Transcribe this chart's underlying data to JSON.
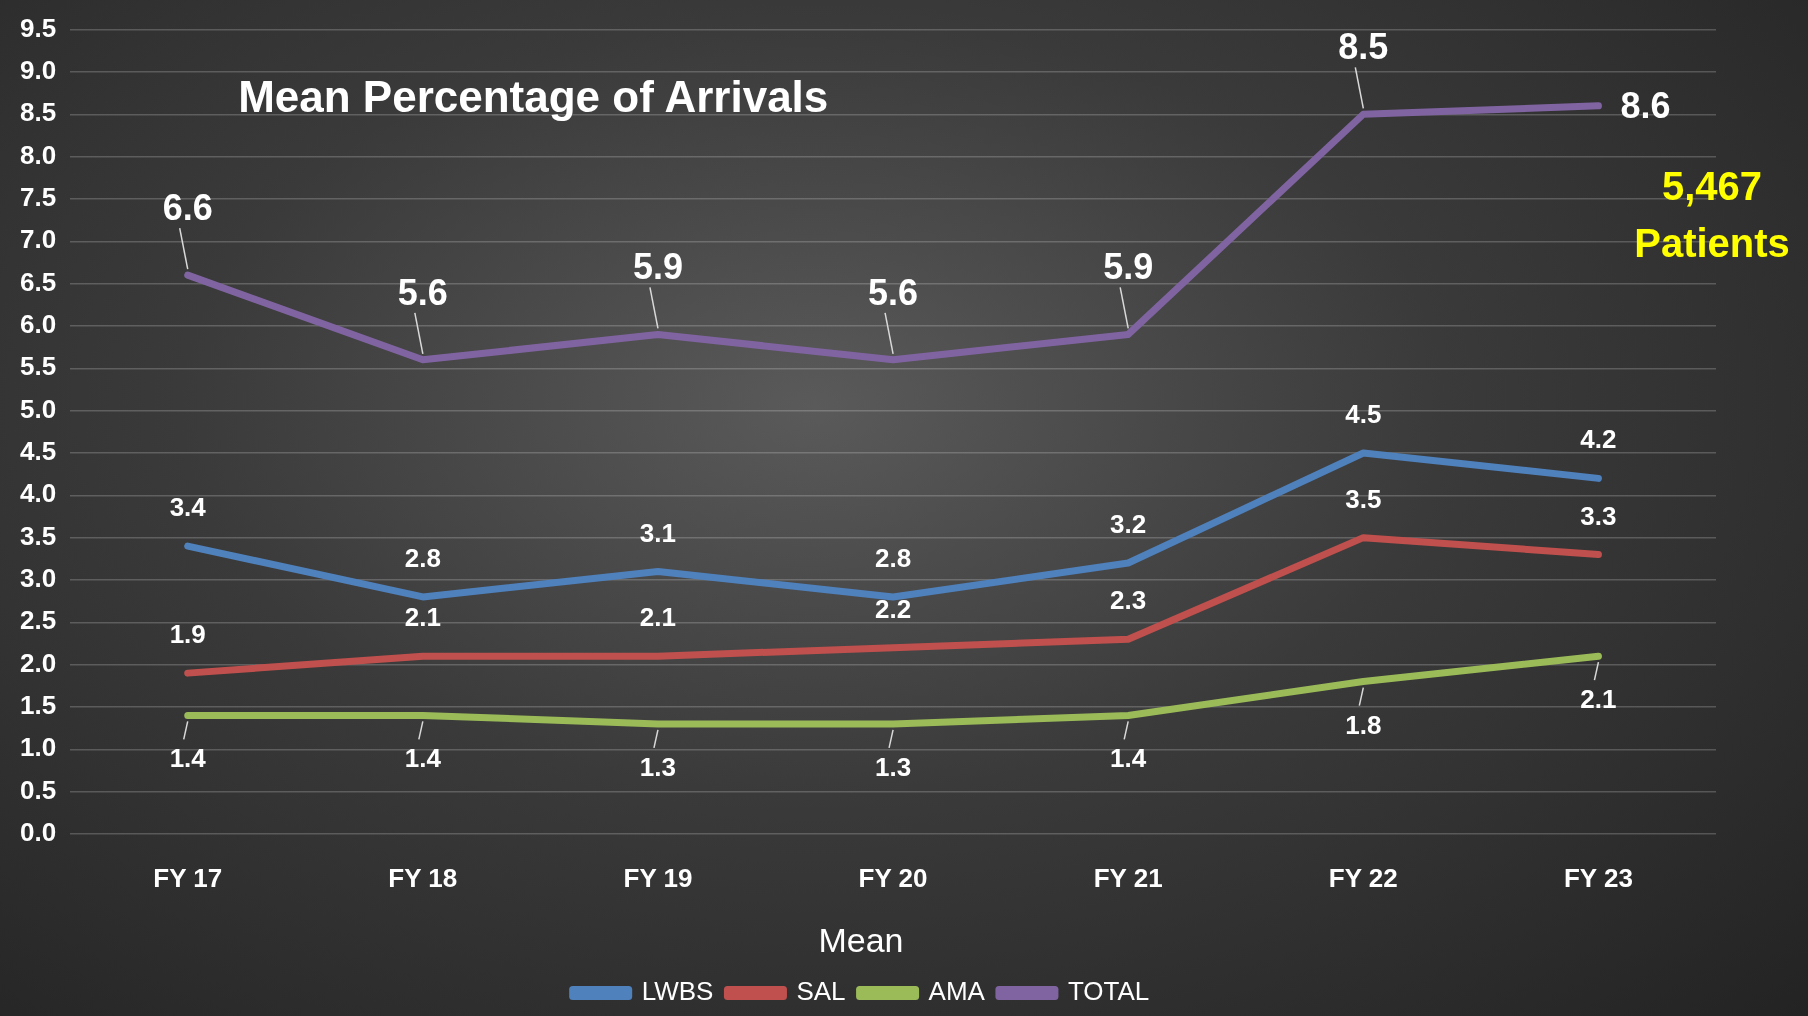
{
  "chart_data": {
    "type": "line",
    "title": "Mean Percentage of Arrivals",
    "legend_title": "Mean",
    "categories": [
      "FY 17",
      "FY 18",
      "FY 19",
      "FY 20",
      "FY 21",
      "FY 22",
      "FY 23"
    ],
    "series": [
      {
        "name": "LWBS",
        "color": "#4f81bd",
        "values": [
          3.4,
          2.8,
          3.1,
          2.8,
          3.2,
          4.5,
          4.2
        ]
      },
      {
        "name": "SAL",
        "color": "#c0504d",
        "values": [
          1.9,
          2.1,
          2.1,
          2.2,
          2.3,
          3.5,
          3.3
        ]
      },
      {
        "name": "AMA",
        "color": "#9bbb59",
        "values": [
          1.4,
          1.4,
          1.3,
          1.3,
          1.4,
          1.8,
          2.1
        ]
      },
      {
        "name": "TOTAL",
        "color": "#8064a2",
        "values": [
          6.6,
          5.6,
          5.9,
          5.6,
          5.9,
          8.5,
          8.6
        ]
      }
    ],
    "ylim": [
      0,
      9.5
    ],
    "yticks": [
      {
        "value": 0,
        "label": "0.0"
      },
      {
        "value": 0.5,
        "label": "0.5"
      },
      {
        "value": 1,
        "label": "1.0"
      },
      {
        "value": 1.5,
        "label": "1.5"
      },
      {
        "value": 2,
        "label": "2.0"
      },
      {
        "value": 2.5,
        "label": "2.5"
      },
      {
        "value": 3,
        "label": "3.0"
      },
      {
        "value": 3.5,
        "label": "3.5"
      },
      {
        "value": 4,
        "label": "4.0"
      },
      {
        "value": 4.5,
        "label": "4.5"
      },
      {
        "value": 5,
        "label": "5.0"
      },
      {
        "value": 5.5,
        "label": "5.5"
      },
      {
        "value": 6,
        "label": "6.0"
      },
      {
        "value": 6.5,
        "label": "6.5"
      },
      {
        "value": 7,
        "label": "7.0"
      },
      {
        "value": 7.5,
        "label": "7.5"
      },
      {
        "value": 8,
        "label": "8.0"
      },
      {
        "value": 8.5,
        "label": "8.5"
      },
      {
        "value": 9,
        "label": "9.0"
      },
      {
        "value": 9.5,
        "label": "9.5"
      }
    ],
    "grid": "y",
    "legend": "bottom",
    "marker": "none",
    "line_style": "solid",
    "data_labels": true,
    "annotations": [
      "5,467 Patients"
    ]
  }
}
